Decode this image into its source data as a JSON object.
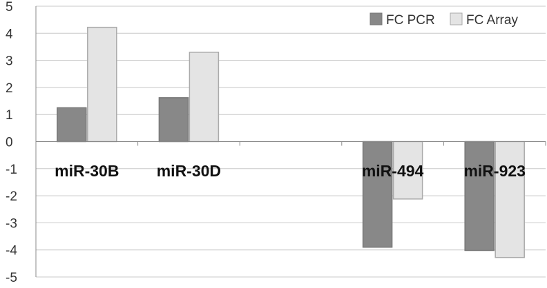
{
  "chart_data": {
    "type": "bar",
    "categories": [
      "miR-30B",
      "miR-30D",
      "",
      "miR-494",
      "miR-923"
    ],
    "series": [
      {
        "name": "FC PCR",
        "values": [
          1.25,
          1.62,
          null,
          -3.9,
          -4.02
        ],
        "color": "#888888",
        "stroke": "#777777"
      },
      {
        "name": "FC Array",
        "values": [
          4.22,
          3.3,
          null,
          -2.12,
          -4.28
        ],
        "color": "#e4e4e4",
        "stroke": "#aaaaaa"
      }
    ],
    "yticks": [
      "5",
      "4",
      "3",
      "2",
      "1",
      "0",
      "-1",
      "-2",
      "-3",
      "-4",
      "-5"
    ],
    "ylim": [
      -5,
      5
    ],
    "grid": true,
    "legend": "top-right",
    "title": "",
    "xlabel": "",
    "ylabel": ""
  }
}
